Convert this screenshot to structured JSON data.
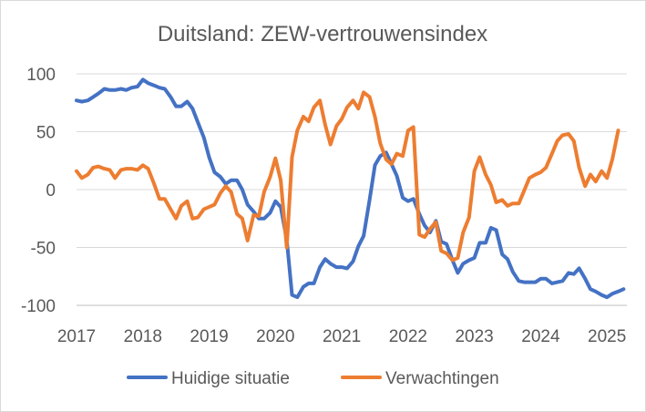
{
  "chart_data": {
    "type": "line",
    "title": "Duitsland: ZEW-vertrouwensindex",
    "xlabel": "",
    "ylabel": "",
    "xlim": [
      2017.0,
      2025.3
    ],
    "ylim": [
      -100,
      100
    ],
    "y_ticks": [
      100,
      50,
      0,
      -50,
      -100
    ],
    "y_tick_labels": [
      "100",
      "50",
      "0",
      "-50",
      "-100"
    ],
    "x_ticks": [
      2017,
      2018,
      2019,
      2020,
      2021,
      2022,
      2023,
      2024,
      2025
    ],
    "x_tick_labels": [
      "2017",
      "2018",
      "2019",
      "2020",
      "2021",
      "2022",
      "2023",
      "2024",
      "2025"
    ],
    "grid": true,
    "legend_position": "bottom",
    "series": [
      {
        "name": "Huidige situatie",
        "color": "#4472C4",
        "points": [
          [
            2017.0,
            77
          ],
          [
            2017.08,
            76
          ],
          [
            2017.17,
            77
          ],
          [
            2017.25,
            80
          ],
          [
            2017.33,
            83
          ],
          [
            2017.42,
            87
          ],
          [
            2017.5,
            86
          ],
          [
            2017.58,
            86
          ],
          [
            2017.67,
            87
          ],
          [
            2017.75,
            86
          ],
          [
            2017.83,
            88
          ],
          [
            2017.92,
            89
          ],
          [
            2018.0,
            95
          ],
          [
            2018.08,
            92
          ],
          [
            2018.17,
            90
          ],
          [
            2018.25,
            88
          ],
          [
            2018.33,
            87
          ],
          [
            2018.42,
            80
          ],
          [
            2018.5,
            72
          ],
          [
            2018.58,
            72
          ],
          [
            2018.67,
            76
          ],
          [
            2018.75,
            70
          ],
          [
            2018.83,
            58
          ],
          [
            2018.92,
            45
          ],
          [
            2019.0,
            28
          ],
          [
            2019.08,
            15
          ],
          [
            2019.17,
            11
          ],
          [
            2019.25,
            5
          ],
          [
            2019.33,
            8
          ],
          [
            2019.42,
            8
          ],
          [
            2019.5,
            0
          ],
          [
            2019.58,
            -13
          ],
          [
            2019.67,
            -19
          ],
          [
            2019.75,
            -25
          ],
          [
            2019.83,
            -25
          ],
          [
            2019.92,
            -20
          ],
          [
            2020.0,
            -10
          ],
          [
            2020.08,
            -15
          ],
          [
            2020.17,
            -43
          ],
          [
            2020.25,
            -91
          ],
          [
            2020.33,
            -93
          ],
          [
            2020.42,
            -84
          ],
          [
            2020.5,
            -81
          ],
          [
            2020.58,
            -81
          ],
          [
            2020.67,
            -67
          ],
          [
            2020.75,
            -60
          ],
          [
            2020.83,
            -64
          ],
          [
            2020.92,
            -67
          ],
          [
            2021.0,
            -67
          ],
          [
            2021.08,
            -68
          ],
          [
            2021.17,
            -62
          ],
          [
            2021.25,
            -49
          ],
          [
            2021.33,
            -40
          ],
          [
            2021.42,
            -9
          ],
          [
            2021.5,
            21
          ],
          [
            2021.58,
            29
          ],
          [
            2021.67,
            32
          ],
          [
            2021.75,
            22
          ],
          [
            2021.83,
            12
          ],
          [
            2021.92,
            -7
          ],
          [
            2022.0,
            -10
          ],
          [
            2022.08,
            -8
          ],
          [
            2022.17,
            -21
          ],
          [
            2022.25,
            -31
          ],
          [
            2022.33,
            -37
          ],
          [
            2022.42,
            -27
          ],
          [
            2022.5,
            -45
          ],
          [
            2022.58,
            -47
          ],
          [
            2022.67,
            -61
          ],
          [
            2022.75,
            -72
          ],
          [
            2022.83,
            -64
          ],
          [
            2022.92,
            -61
          ],
          [
            2023.0,
            -59
          ],
          [
            2023.08,
            -46
          ],
          [
            2023.17,
            -46
          ],
          [
            2023.25,
            -33
          ],
          [
            2023.33,
            -35
          ],
          [
            2023.42,
            -56
          ],
          [
            2023.5,
            -60
          ],
          [
            2023.58,
            -71
          ],
          [
            2023.67,
            -79
          ],
          [
            2023.75,
            -80
          ],
          [
            2023.83,
            -80
          ],
          [
            2023.92,
            -80
          ],
          [
            2024.0,
            -77
          ],
          [
            2024.08,
            -77
          ],
          [
            2024.17,
            -81
          ],
          [
            2024.25,
            -80
          ],
          [
            2024.33,
            -79
          ],
          [
            2024.42,
            -72
          ],
          [
            2024.5,
            -73
          ],
          [
            2024.58,
            -68
          ],
          [
            2024.67,
            -77
          ],
          [
            2024.75,
            -86
          ],
          [
            2024.83,
            -88
          ],
          [
            2024.92,
            -91
          ],
          [
            2025.0,
            -93
          ],
          [
            2025.08,
            -90
          ],
          [
            2025.17,
            -88
          ],
          [
            2025.25,
            -86
          ]
        ]
      },
      {
        "name": "Verwachtingen",
        "color": "#ED7D31",
        "points": [
          [
            2017.0,
            16
          ],
          [
            2017.08,
            10
          ],
          [
            2017.17,
            13
          ],
          [
            2017.25,
            19
          ],
          [
            2017.33,
            20
          ],
          [
            2017.42,
            18
          ],
          [
            2017.5,
            17
          ],
          [
            2017.58,
            10
          ],
          [
            2017.67,
            17
          ],
          [
            2017.75,
            18
          ],
          [
            2017.83,
            18
          ],
          [
            2017.92,
            17
          ],
          [
            2018.0,
            21
          ],
          [
            2018.08,
            18
          ],
          [
            2018.17,
            5
          ],
          [
            2018.25,
            -8
          ],
          [
            2018.33,
            -8
          ],
          [
            2018.42,
            -17
          ],
          [
            2018.5,
            -25
          ],
          [
            2018.58,
            -14
          ],
          [
            2018.67,
            -10
          ],
          [
            2018.75,
            -25
          ],
          [
            2018.83,
            -24
          ],
          [
            2018.92,
            -17
          ],
          [
            2019.0,
            -15
          ],
          [
            2019.08,
            -13
          ],
          [
            2019.17,
            -3
          ],
          [
            2019.25,
            3
          ],
          [
            2019.33,
            -2
          ],
          [
            2019.42,
            -21
          ],
          [
            2019.5,
            -25
          ],
          [
            2019.58,
            -44
          ],
          [
            2019.67,
            -22
          ],
          [
            2019.75,
            -23
          ],
          [
            2019.83,
            -2
          ],
          [
            2019.92,
            11
          ],
          [
            2020.0,
            27
          ],
          [
            2020.08,
            8
          ],
          [
            2020.17,
            -50
          ],
          [
            2020.25,
            28
          ],
          [
            2020.33,
            51
          ],
          [
            2020.42,
            63
          ],
          [
            2020.5,
            59
          ],
          [
            2020.58,
            71
          ],
          [
            2020.67,
            77
          ],
          [
            2020.75,
            56
          ],
          [
            2020.83,
            39
          ],
          [
            2020.92,
            55
          ],
          [
            2021.0,
            61
          ],
          [
            2021.08,
            71
          ],
          [
            2021.17,
            77
          ],
          [
            2021.25,
            70
          ],
          [
            2021.33,
            84
          ],
          [
            2021.42,
            80
          ],
          [
            2021.5,
            63
          ],
          [
            2021.58,
            40
          ],
          [
            2021.67,
            26
          ],
          [
            2021.75,
            22
          ],
          [
            2021.83,
            31
          ],
          [
            2021.92,
            29
          ],
          [
            2022.0,
            51
          ],
          [
            2022.08,
            54
          ],
          [
            2022.17,
            -39
          ],
          [
            2022.25,
            -41
          ],
          [
            2022.33,
            -34
          ],
          [
            2022.42,
            -28
          ],
          [
            2022.5,
            -53
          ],
          [
            2022.58,
            -55
          ],
          [
            2022.67,
            -61
          ],
          [
            2022.75,
            -59
          ],
          [
            2022.83,
            -37
          ],
          [
            2022.92,
            -24
          ],
          [
            2023.0,
            16
          ],
          [
            2023.08,
            28
          ],
          [
            2023.17,
            13
          ],
          [
            2023.25,
            4
          ],
          [
            2023.33,
            -11
          ],
          [
            2023.42,
            -9
          ],
          [
            2023.5,
            -14
          ],
          [
            2023.58,
            -12
          ],
          [
            2023.67,
            -12
          ],
          [
            2023.75,
            -1
          ],
          [
            2023.83,
            10
          ],
          [
            2023.92,
            13
          ],
          [
            2024.0,
            15
          ],
          [
            2024.08,
            19
          ],
          [
            2024.17,
            31
          ],
          [
            2024.25,
            42
          ],
          [
            2024.33,
            47
          ],
          [
            2024.42,
            48
          ],
          [
            2024.5,
            42
          ],
          [
            2024.58,
            19
          ],
          [
            2024.67,
            3
          ],
          [
            2024.75,
            13
          ],
          [
            2024.83,
            7
          ],
          [
            2024.92,
            16
          ],
          [
            2025.0,
            10
          ],
          [
            2025.08,
            26
          ],
          [
            2025.17,
            51
          ]
        ]
      }
    ]
  }
}
